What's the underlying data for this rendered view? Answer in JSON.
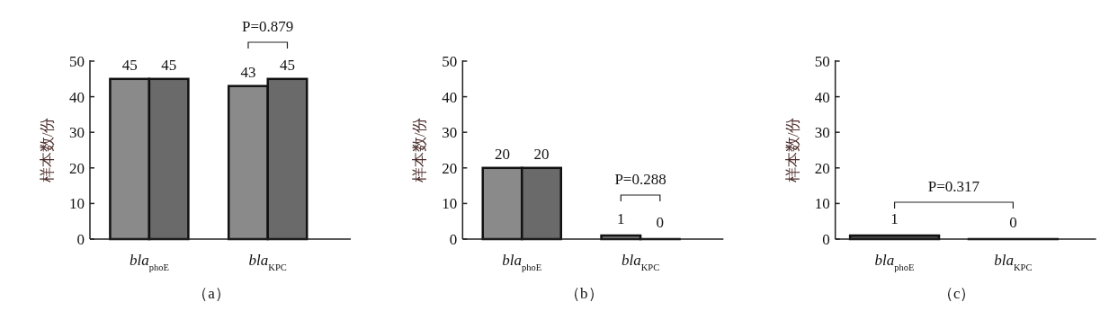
{
  "chart_data": [
    {
      "type": "bar",
      "ylabel": "样本数/份",
      "categories": [
        "bla$_{phoE}$",
        "bla$_{KPC}$"
      ],
      "series": [
        {
          "color": "#8a8a8a",
          "values": [
            45,
            43
          ]
        },
        {
          "color": "#6a6a6a",
          "values": [
            45,
            45
          ]
        }
      ],
      "ylim": [
        0,
        50
      ],
      "yticks": [
        0,
        10,
        20,
        30,
        40,
        50
      ],
      "data_labels": true,
      "annotations": [
        "P=0.879",
        "（a）"
      ]
    },
    {
      "type": "bar",
      "ylabel": "样本数/份",
      "categories": [
        "bla$_{phoE}$",
        "bla$_{KPC}$"
      ],
      "series": [
        {
          "color": "#8a8a8a",
          "values": [
            20,
            1
          ]
        },
        {
          "color": "#6a6a6a",
          "values": [
            20,
            0
          ]
        }
      ],
      "ylim": [
        0,
        50
      ],
      "yticks": [
        0,
        10,
        20,
        30,
        40,
        50
      ],
      "data_labels": true,
      "annotations": [
        "P=0.288",
        "（b）"
      ]
    },
    {
      "type": "bar",
      "ylabel": "样本数/份",
      "categories": [
        "bla$_{phoE}$",
        "bla$_{KPC}$"
      ],
      "series": [
        {
          "color": "#555555",
          "values": [
            1,
            0
          ]
        }
      ],
      "ylim": [
        0,
        50
      ],
      "yticks": [
        0,
        10,
        20,
        30,
        40,
        50
      ],
      "data_labels": true,
      "annotations": [
        "P=0.317",
        "（c）"
      ]
    }
  ]
}
